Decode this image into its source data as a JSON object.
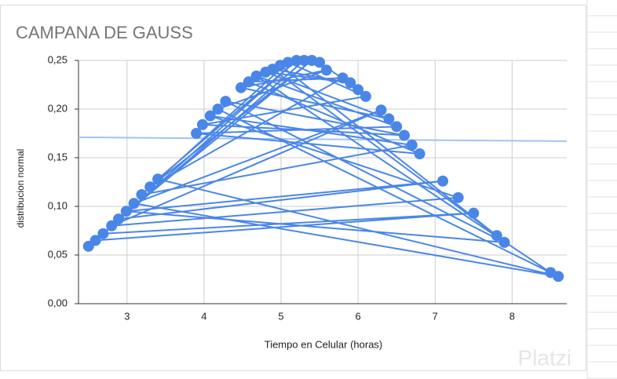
{
  "chart_data": {
    "type": "line",
    "title": "CAMPANA DE GAUSS",
    "x_label": "Tiempo en Celular (horas)",
    "y_label": "distribucion normal",
    "x": [
      2.5,
      5.3,
      2.59,
      7.5,
      2.69,
      5.2,
      3.4,
      8.6,
      3.09,
      6.3,
      2.8,
      7.3,
      4.08,
      6.7,
      3.19,
      5.09,
      6.1,
      3.98,
      6.6,
      4.28,
      7.9,
      2.99,
      7.1,
      2.89,
      5.4,
      3.3,
      5.8,
      4.58,
      6.8,
      3.9,
      6.5,
      4.68,
      8.5,
      4.18,
      5.59,
      4.48,
      6.4,
      4.8,
      5.9,
      4.89,
      7.8,
      4.99,
      5.5,
      6.0
    ],
    "series": [
      {
        "name": "distribucion normal",
        "color": "#4a86e8",
        "values": [
          0.059,
          0.25,
          0.065,
          0.093,
          0.072,
          0.25,
          0.128,
          0.028,
          0.103,
          0.199,
          0.08,
          0.109,
          0.193,
          0.163,
          0.112,
          0.248,
          0.213,
          0.184,
          0.173,
          0.208,
          0.063,
          0.095,
          0.126,
          0.087,
          0.25,
          0.12,
          0.232,
          0.228,
          0.154,
          0.175,
          0.182,
          0.234,
          0.032,
          0.2,
          0.24,
          0.222,
          0.19,
          0.238,
          0.227,
          0.241,
          0.07,
          0.245,
          0.248,
          0.22
        ]
      }
    ],
    "trendline": {
      "color": "#a4c2f4",
      "values": [
        0.171,
        0.167
      ]
    },
    "xlim": [
      2.37,
      8.71
    ],
    "xticks": [
      3,
      4,
      5,
      6,
      7,
      8
    ],
    "ylim": [
      0,
      0.25
    ],
    "yticks": [
      {
        "value": 0,
        "label": "0,00"
      },
      {
        "value": 0.05,
        "label": "0,05"
      },
      {
        "value": 0.1,
        "label": "0,10"
      },
      {
        "value": 0.15,
        "label": "0,15"
      },
      {
        "value": 0.2,
        "label": "0,20"
      },
      {
        "value": 0.25,
        "label": "0,25"
      }
    ],
    "grid": true
  },
  "watermark": "Platzi"
}
